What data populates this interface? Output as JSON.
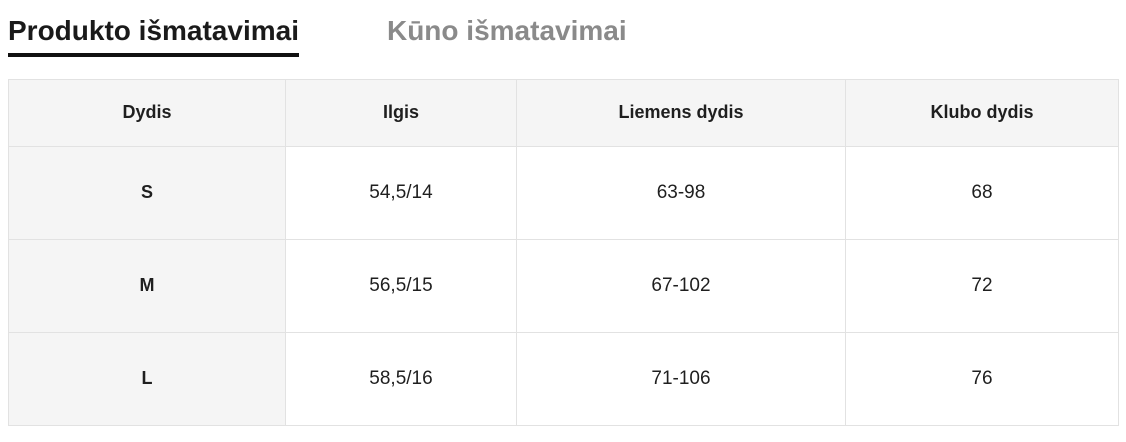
{
  "tabs": {
    "product": {
      "label": "Produkto išmatavimai",
      "active": true
    },
    "body": {
      "label": "Kūno išmatavimai",
      "active": false
    }
  },
  "table": {
    "headers": [
      "Dydis",
      "Ilgis",
      "Liemens dydis",
      "Klubo dydis"
    ],
    "rows": [
      [
        "S",
        "54,5/14",
        "63-98",
        "68"
      ],
      [
        "M",
        "56,5/15",
        "67-102",
        "72"
      ],
      [
        "L",
        "58,5/16",
        "71-106",
        "76"
      ]
    ]
  },
  "colors": {
    "active_tab_text": "#1a1a1a",
    "active_tab_underline": "#111111",
    "inactive_tab_text": "#8a8a8a",
    "header_cell_background": "#f5f5f5",
    "table_border": "#e2e2e2",
    "cell_text": "#1f1f1f",
    "page_background": "#ffffff"
  }
}
